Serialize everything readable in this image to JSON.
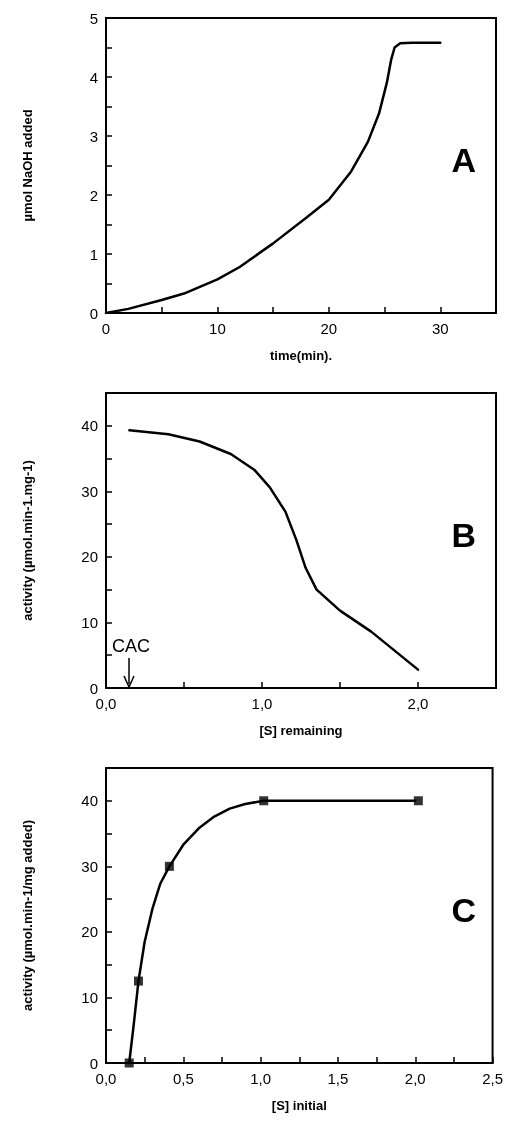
{
  "chart_data": [
    {
      "type": "line",
      "xlabel": "time(min).",
      "ylabel": "µmol NaOH added",
      "annotations": [
        "A"
      ],
      "xlim": [
        0,
        35
      ],
      "xticks": [
        0,
        {
          "value": 5,
          "label": null
        },
        10,
        {
          "value": 15,
          "label": null
        },
        20,
        {
          "value": 25,
          "label": null
        },
        30,
        {
          "value": 35,
          "label": null
        }
      ],
      "ylim": [
        0,
        5
      ],
      "yticks": [
        0,
        {
          "value": 0.5,
          "label": null
        },
        1,
        {
          "value": 1.5,
          "label": null
        },
        2,
        {
          "value": 2.5,
          "label": null
        },
        3,
        {
          "value": 3.5,
          "label": null
        },
        4,
        {
          "value": 4.5,
          "label": null
        },
        5
      ],
      "marker": "none",
      "line_style": "solid",
      "series": [
        {
          "color": "#000000",
          "x": [
            0,
            2,
            5,
            7,
            10,
            12,
            15,
            18,
            20,
            22,
            23.5,
            24.5,
            25.2,
            25.6,
            25.9,
            26.4,
            27.5,
            30
          ],
          "values": [
            0,
            0.07,
            0.22,
            0.33,
            0.57,
            0.78,
            1.18,
            1.62,
            1.92,
            2.4,
            2.9,
            3.38,
            3.9,
            4.3,
            4.5,
            4.57,
            4.58,
            4.58
          ]
        }
      ]
    },
    {
      "type": "line",
      "xlabel": "[S] remaining",
      "ylabel": "activity (µmol.min-1.mg-1)",
      "annotations": [
        "B",
        "CAC"
      ],
      "xlim": [
        0,
        2.5
      ],
      "xticks": [
        {
          "value": 0,
          "label": "0,0"
        },
        {
          "value": 0.5,
          "label": null
        },
        {
          "value": 1,
          "label": "1,0"
        },
        {
          "value": 1.5,
          "label": null
        },
        {
          "value": 2,
          "label": "2,0"
        },
        {
          "value": 2.5,
          "label": null
        }
      ],
      "ylim": [
        0,
        45
      ],
      "yticks": [
        0,
        {
          "value": 5,
          "label": null
        },
        10,
        {
          "value": 15,
          "label": null
        },
        20,
        {
          "value": 25,
          "label": null
        },
        30,
        {
          "value": 35,
          "label": null
        },
        40,
        {
          "value": 45,
          "label": null
        }
      ],
      "marker": "none",
      "line_style": "solid",
      "series": [
        {
          "color": "#000000",
          "x": [
            0.15,
            0.4,
            0.6,
            0.8,
            0.95,
            1.05,
            1.15,
            1.22,
            1.28,
            1.35,
            1.5,
            1.7,
            2.0
          ],
          "values": [
            39.3,
            38.7,
            37.6,
            35.7,
            33.3,
            30.6,
            26.9,
            22.6,
            18.3,
            15,
            11.8,
            8.6,
            2.8
          ]
        }
      ]
    },
    {
      "type": "scatter",
      "xlabel": "[S] initial",
      "ylabel": "activity (µmol.min-1/mg added)",
      "annotations": [
        "C"
      ],
      "xlim": [
        0,
        2.5
      ],
      "xticks": [
        {
          "value": 0,
          "label": "0,0"
        },
        {
          "value": 0.25,
          "label": null
        },
        {
          "value": 0.5,
          "label": "0,5"
        },
        {
          "value": 0.75,
          "label": null
        },
        {
          "value": 1,
          "label": "1,0"
        },
        {
          "value": 1.25,
          "label": null
        },
        {
          "value": 1.5,
          "label": "1,5"
        },
        {
          "value": 1.75,
          "label": null
        },
        {
          "value": 2,
          "label": "2,0"
        },
        {
          "value": 2.25,
          "label": null
        },
        {
          "value": 2.5,
          "label": "2,5"
        }
      ],
      "ylim": [
        0,
        45
      ],
      "yticks": [
        0,
        {
          "value": 5,
          "label": null
        },
        10,
        {
          "value": 15,
          "label": null
        },
        20,
        {
          "value": 25,
          "label": null
        },
        30,
        {
          "value": 35,
          "label": null
        },
        40,
        {
          "value": 45,
          "label": null
        }
      ],
      "marker": "square",
      "series": [
        {
          "color": "#000000",
          "x": [
            0.15,
            0.21,
            0.41,
            1.02,
            2.02
          ],
          "values": [
            0,
            12.5,
            30,
            40,
            40
          ]
        },
        {
          "type": "line",
          "marker": "none",
          "line_style": "solid",
          "color": "#000000",
          "x": [
            0.15,
            0.18,
            0.21,
            0.25,
            0.3,
            0.35,
            0.41,
            0.5,
            0.6,
            0.7,
            0.8,
            0.9,
            1.02,
            2.0
          ],
          "values": [
            0,
            6,
            12.5,
            18.5,
            23.5,
            27.3,
            30,
            33.3,
            35.8,
            37.6,
            38.8,
            39.5,
            40,
            40
          ]
        }
      ]
    }
  ]
}
